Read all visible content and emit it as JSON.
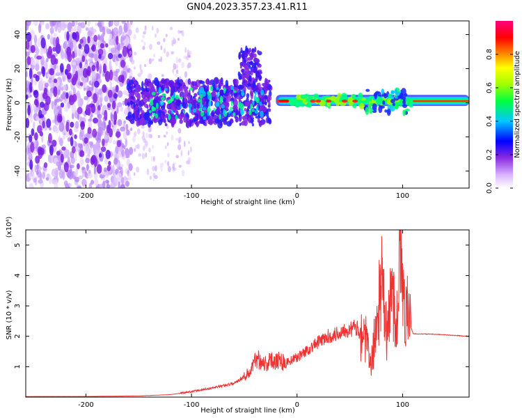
{
  "chart_data": [
    {
      "type": "heatmap",
      "title": "GN04.2023.357.23.41.R11",
      "xlabel": "Height of straight line (km)",
      "ylabel": "Frequency (Hz)",
      "xlim": [
        -257,
        163
      ],
      "ylim": [
        -50,
        48
      ],
      "x_ticks": [
        -200,
        -100,
        0,
        100
      ],
      "y_ticks": [
        -40,
        -20,
        0,
        20,
        40
      ],
      "colorbar": {
        "label": "Normalized spectral amplitude",
        "range": [
          0,
          1
        ],
        "ticks": [
          "0.0",
          "0.2",
          "0.4",
          "0.6",
          "0.8"
        ],
        "colormap": "rainbow (white-violet-blue-cyan-green-yellow-red-magenta)"
      },
      "regions": [
        {
          "x_range": [
            -257,
            -160
          ],
          "freq_spread": [
            -50,
            48
          ],
          "amplitude": "low-medium, scattered"
        },
        {
          "x_range": [
            -160,
            -25
          ],
          "freq_spread": [
            -15,
            12
          ],
          "amplitude": "medium"
        },
        {
          "x_range": [
            -55,
            -35
          ],
          "freq_spread": [
            15,
            30
          ],
          "amplitude": "medium"
        },
        {
          "x_range": [
            -20,
            163
          ],
          "freq_spread": [
            -2,
            3
          ],
          "amplitude": "high, narrow band near 0 Hz"
        }
      ]
    },
    {
      "type": "line",
      "xlabel": "Height of straight line (km)",
      "ylabel": "SNR (10 * v/v)",
      "y_multiplier": "(x10⁴)",
      "xlim": [
        -257,
        163
      ],
      "ylim": [
        0,
        5.5
      ],
      "x_ticks": [
        -200,
        -100,
        0,
        100
      ],
      "y_ticks": [
        1,
        2,
        3,
        4,
        5
      ],
      "color": "#ee3333",
      "series": [
        {
          "x": [
            -257,
            -200,
            -150,
            -120,
            -100,
            -80,
            -60,
            -45,
            -38,
            -30,
            -20,
            -10,
            0,
            10,
            20,
            30,
            40,
            45,
            50,
            55,
            60,
            65,
            70,
            75,
            80,
            85,
            90,
            95,
            97,
            100,
            105,
            108,
            110,
            130,
            163
          ],
          "y": [
            0.02,
            0.02,
            0.04,
            0.08,
            0.18,
            0.3,
            0.45,
            0.8,
            1.3,
            1.1,
            1.25,
            1.15,
            1.3,
            1.55,
            1.8,
            2.0,
            2.1,
            2.25,
            2.2,
            2.3,
            2.15,
            1.9,
            1.0,
            2.3,
            3.8,
            2.0,
            3.5,
            2.4,
            5.4,
            3.2,
            2.8,
            2.3,
            2.08,
            2.07,
            2.0
          ]
        }
      ]
    }
  ]
}
